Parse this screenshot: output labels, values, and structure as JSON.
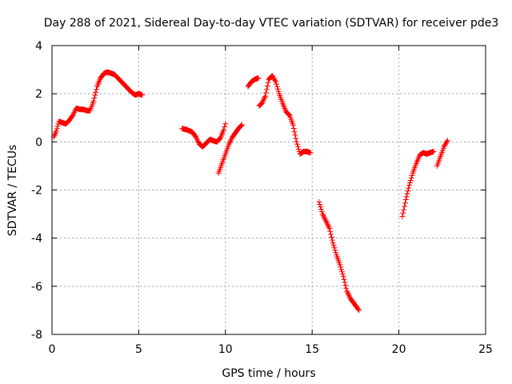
{
  "chart_data": {
    "type": "scatter",
    "title": "Day 288 of 2021, Sidereal Day-to-day VTEC variation (SDTVAR) for receiver pde3",
    "xlabel": "GPS time / hours",
    "ylabel": "SDTVAR / TECUs",
    "xlim": [
      0,
      25
    ],
    "ylim": [
      -8,
      4
    ],
    "xticks": [
      0,
      5,
      10,
      15,
      20,
      25
    ],
    "yticks": [
      -8,
      -6,
      -4,
      -2,
      0,
      2,
      4
    ],
    "grid": true,
    "marker": "+",
    "color": "#ff0000",
    "series": [
      {
        "name": "SDTVAR",
        "segments": [
          [
            [
              0.1,
              0.2
            ],
            [
              0.25,
              0.45
            ],
            [
              0.4,
              0.85
            ],
            [
              0.6,
              0.8
            ],
            [
              0.8,
              0.75
            ],
            [
              1.0,
              0.9
            ],
            [
              1.2,
              1.1
            ],
            [
              1.4,
              1.4
            ],
            [
              1.6,
              1.35
            ],
            [
              1.8,
              1.35
            ],
            [
              2.0,
              1.3
            ],
            [
              2.2,
              1.3
            ],
            [
              2.4,
              1.7
            ],
            [
              2.6,
              2.3
            ],
            [
              2.8,
              2.65
            ],
            [
              3.0,
              2.85
            ],
            [
              3.2,
              2.9
            ],
            [
              3.4,
              2.85
            ],
            [
              3.6,
              2.8
            ],
            [
              3.8,
              2.65
            ],
            [
              4.0,
              2.5
            ],
            [
              4.2,
              2.35
            ],
            [
              4.4,
              2.2
            ],
            [
              4.6,
              2.05
            ],
            [
              4.8,
              1.95
            ],
            [
              5.0,
              2.0
            ],
            [
              5.2,
              1.95
            ]
          ],
          [
            [
              7.5,
              0.55
            ],
            [
              7.8,
              0.5
            ],
            [
              8.1,
              0.4
            ],
            [
              8.3,
              0.2
            ],
            [
              8.5,
              -0.1
            ],
            [
              8.7,
              -0.2
            ],
            [
              8.9,
              -0.05
            ],
            [
              9.1,
              0.1
            ],
            [
              9.3,
              0.05
            ],
            [
              9.5,
              0.0
            ],
            [
              9.7,
              0.15
            ],
            [
              9.9,
              0.5
            ],
            [
              10.0,
              0.75
            ]
          ],
          [
            [
              9.6,
              -1.3
            ],
            [
              9.8,
              -0.9
            ],
            [
              10.0,
              -0.5
            ],
            [
              10.2,
              -0.1
            ],
            [
              10.4,
              0.2
            ],
            [
              10.6,
              0.4
            ],
            [
              10.8,
              0.6
            ],
            [
              10.95,
              0.7
            ]
          ],
          [
            [
              11.3,
              2.3
            ],
            [
              11.5,
              2.5
            ],
            [
              11.7,
              2.6
            ],
            [
              11.9,
              2.65
            ]
          ],
          [
            [
              11.95,
              1.5
            ],
            [
              12.1,
              1.6
            ],
            [
              12.3,
              1.9
            ],
            [
              12.5,
              2.6
            ],
            [
              12.7,
              2.75
            ],
            [
              12.9,
              2.5
            ],
            [
              13.1,
              2.0
            ],
            [
              13.3,
              1.6
            ],
            [
              13.5,
              1.25
            ],
            [
              13.7,
              1.1
            ],
            [
              13.9,
              0.7
            ],
            [
              14.1,
              0.0
            ],
            [
              14.3,
              -0.5
            ],
            [
              14.5,
              -0.4
            ],
            [
              14.7,
              -0.4
            ],
            [
              14.9,
              -0.45
            ]
          ],
          [
            [
              15.4,
              -2.5
            ],
            [
              15.6,
              -3.0
            ],
            [
              15.8,
              -3.3
            ],
            [
              16.0,
              -3.6
            ],
            [
              16.2,
              -4.2
            ],
            [
              16.4,
              -4.7
            ],
            [
              16.6,
              -5.1
            ],
            [
              16.8,
              -5.6
            ],
            [
              17.0,
              -6.2
            ],
            [
              17.2,
              -6.5
            ],
            [
              17.4,
              -6.7
            ],
            [
              17.6,
              -6.9
            ],
            [
              17.7,
              -7.0
            ]
          ],
          [
            [
              20.2,
              -3.1
            ],
            [
              20.4,
              -2.4
            ],
            [
              20.6,
              -1.8
            ],
            [
              20.8,
              -1.3
            ],
            [
              21.0,
              -0.9
            ],
            [
              21.2,
              -0.55
            ],
            [
              21.4,
              -0.45
            ],
            [
              21.6,
              -0.5
            ],
            [
              21.8,
              -0.45
            ],
            [
              22.0,
              -0.4
            ]
          ],
          [
            [
              22.2,
              -1.0
            ],
            [
              22.4,
              -0.6
            ],
            [
              22.6,
              -0.2
            ],
            [
              22.8,
              0.05
            ]
          ]
        ]
      }
    ]
  }
}
